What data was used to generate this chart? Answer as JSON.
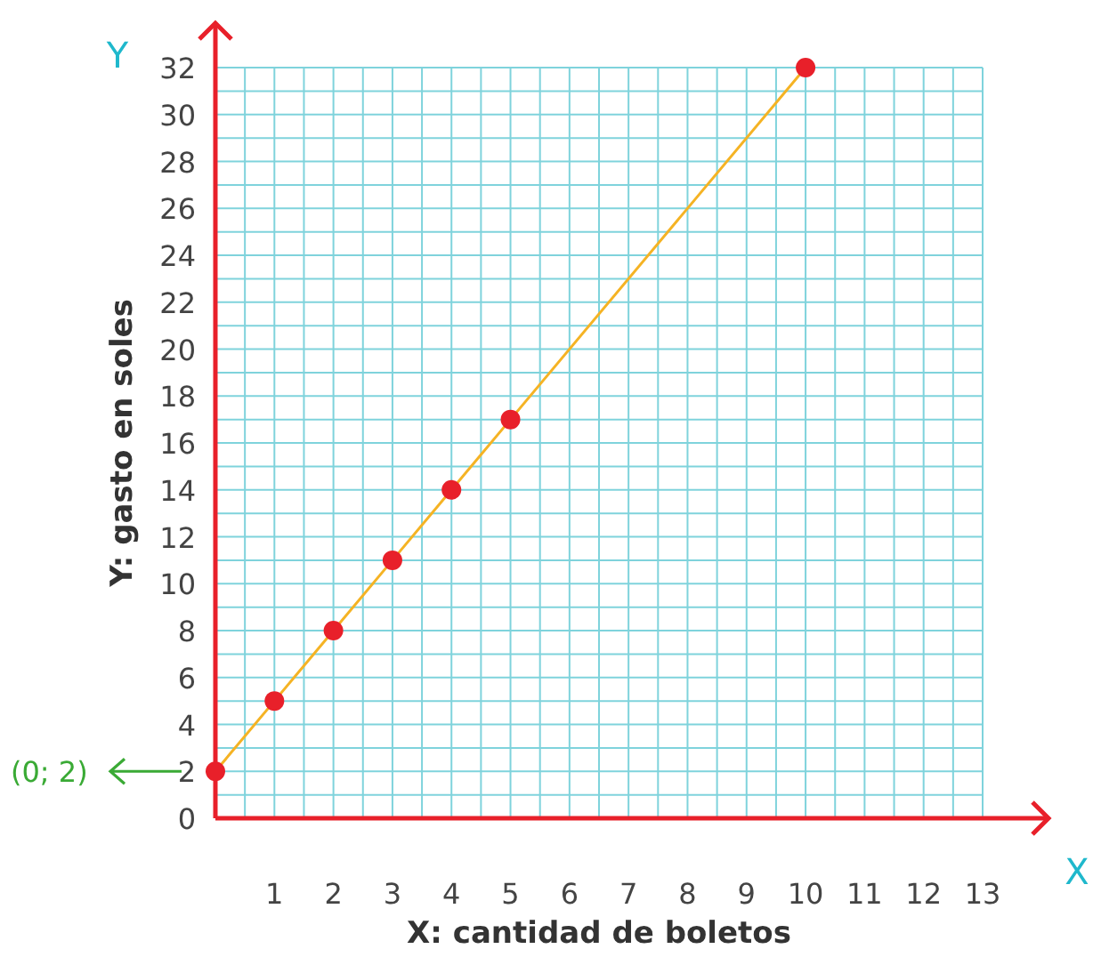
{
  "chart_data": {
    "type": "line",
    "xlabel": "X: cantidad de boletos",
    "ylabel": "Y: gasto en soles",
    "x": [
      0,
      1,
      2,
      3,
      4,
      5,
      10
    ],
    "series": [
      {
        "color": "#f5b324",
        "marker": "none",
        "values": [
          2,
          5,
          8,
          11,
          14,
          17,
          32
        ]
      },
      {
        "type": "scatter",
        "marker": "circle",
        "color": "#e8202a",
        "values": [
          2,
          5,
          8,
          11,
          14,
          17,
          32
        ]
      }
    ],
    "line_style": "solid",
    "xlim": [
      0,
      13
    ],
    "ylim": [
      0,
      32
    ],
    "xticks": [
      1,
      2,
      3,
      4,
      5,
      6,
      7,
      8,
      9,
      10,
      11,
      12,
      13
    ],
    "yticks": [
      0,
      2,
      4,
      6,
      8,
      10,
      12,
      14,
      16,
      18,
      20,
      22,
      24,
      26,
      28,
      30,
      32
    ],
    "grid": true,
    "annotations": [
      "Y",
      "X",
      "(0; 2)"
    ]
  }
}
